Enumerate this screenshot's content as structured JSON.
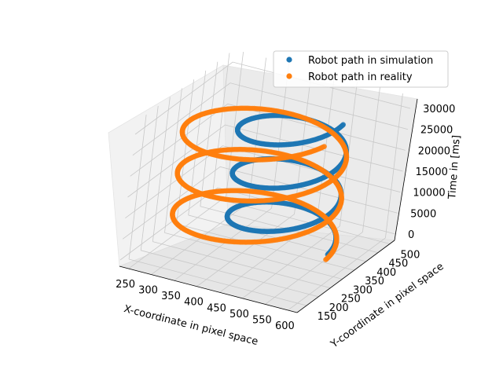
{
  "chart_data": {
    "type": "scatter",
    "projection": "3d",
    "grid": true,
    "legend_position": "top-right",
    "xlabel": "X-coordinate in pixel space",
    "ylabel": "Y-coordinate in pixel space",
    "zlabel": "Time in [ms]",
    "xlim": [
      230,
      620
    ],
    "ylim": [
      110,
      520
    ],
    "zlim": [
      -1500,
      33000
    ],
    "xticks": [
      "250",
      "300",
      "350",
      "400",
      "450",
      "500",
      "550",
      "600"
    ],
    "yticks": [
      "150",
      "200",
      "250",
      "300",
      "350",
      "400",
      "450",
      "500"
    ],
    "zticks": [
      "0",
      "5000",
      "10000",
      "15000",
      "20000",
      "25000",
      "30000"
    ],
    "series": [
      {
        "name": "Robot path in simulation",
        "color": "#1f77b4",
        "helix": {
          "center_x": 450,
          "center_y": 360,
          "radius_x": 105,
          "radius_y": 120,
          "turns": 3.0,
          "t_start": 0,
          "t_end": 31000
        }
      },
      {
        "name": "Robot path in reality",
        "color": "#ff7f0e",
        "helix": {
          "center_x": 420,
          "center_y": 300,
          "radius_x": 160,
          "radius_y": 170,
          "turns": 2.95,
          "t_start": 2000,
          "t_end": 31000
        }
      }
    ]
  }
}
